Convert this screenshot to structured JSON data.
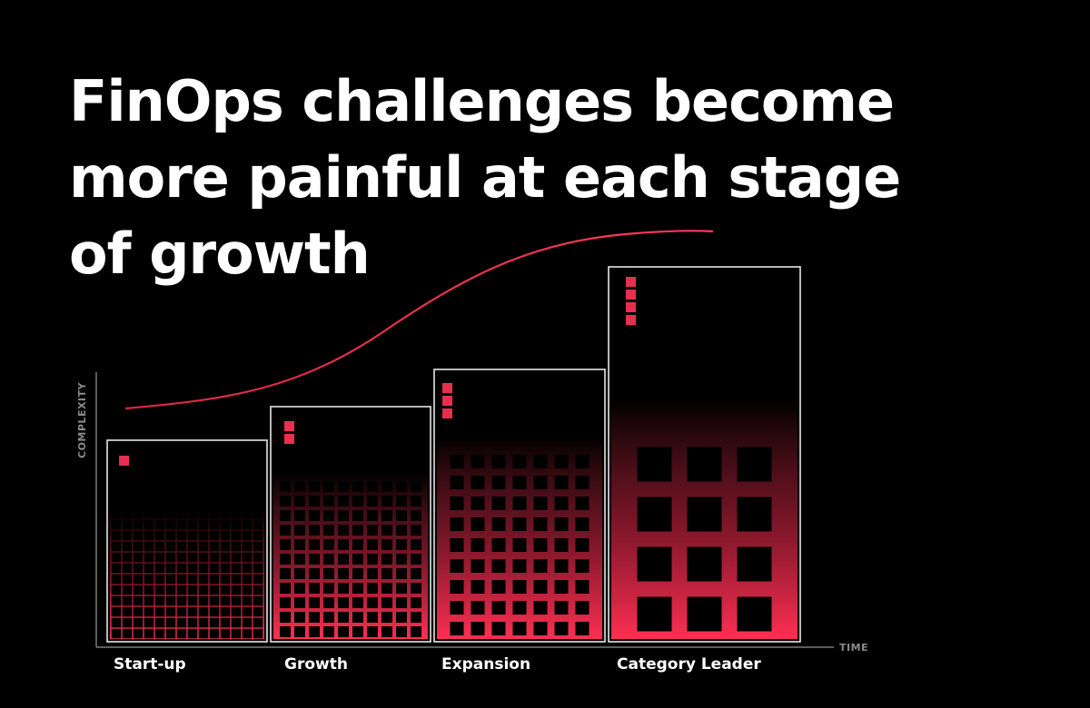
{
  "title": "FinOps challenges become more painful at each stage of growth",
  "axes": {
    "y_label": "COMPLEXITY",
    "x_label": "TIME"
  },
  "stages": [
    {
      "label": "Start-up",
      "markers": 1
    },
    {
      "label": "Growth",
      "markers": 2
    },
    {
      "label": "Expansion",
      "markers": 3
    },
    {
      "label": "Category Leader",
      "markers": 4
    }
  ],
  "colors": {
    "background": "#000000",
    "accent": "#e8304e",
    "outline": "#e6e6e6",
    "axis": "#7a7a7a"
  }
}
